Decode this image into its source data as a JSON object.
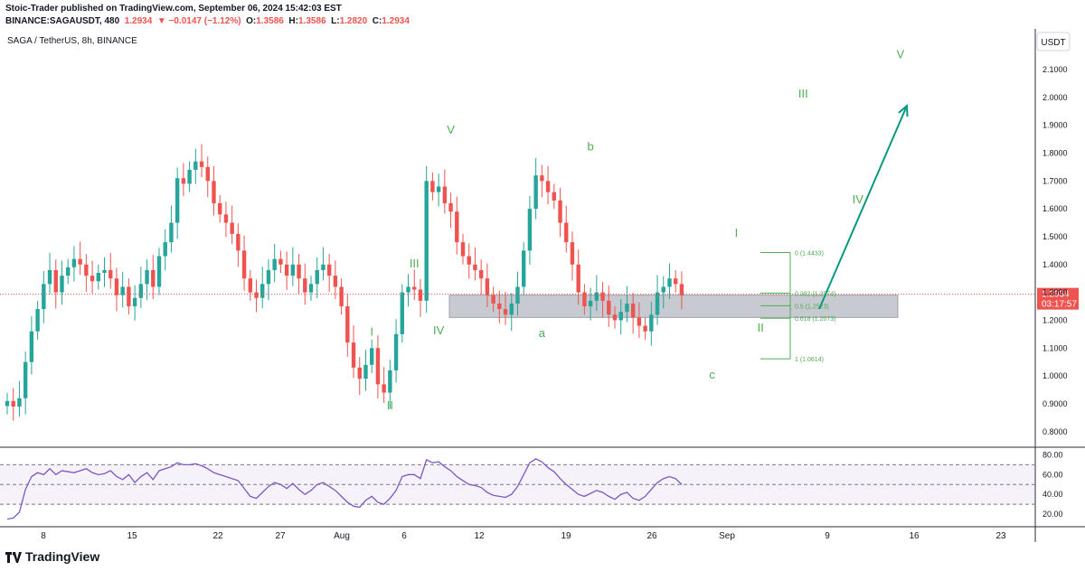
{
  "header": {
    "line1": "Stoic-Trader published on TradingView.com, September 06, 2024 15:42:03 EST",
    "symbol": "BINANCE:SAGAUSDT, 480",
    "last": "1.2934",
    "change": "▼ −0.0147 (−1.12%)",
    "o_label": "O:",
    "o": "1.3586",
    "h_label": "H:",
    "h": "1.3586",
    "l_label": "L:",
    "l": "1.2820",
    "c_label": "C:",
    "c": "1.2934"
  },
  "legend": "SAGA / TetherUS, 8h, BINANCE",
  "currency": "USDT",
  "price_tag": {
    "value": "1.2934",
    "countdown": "03:17:57"
  },
  "footer": {
    "brand": "TradingView"
  },
  "colors": {
    "up": "#26a69a",
    "down": "#ef5350",
    "wave": "#4caf50",
    "arrow": "#089981",
    "rsi": "#7e57c2"
  },
  "chart_data": {
    "type": "candlestick",
    "y_axis_ticks": [
      "2.1000",
      "2.0000",
      "1.9000",
      "1.8000",
      "1.7000",
      "1.6000",
      "1.5000",
      "1.4000",
      "1.3000",
      "1.2000",
      "1.1000",
      "1.0000",
      "0.9000",
      "0.8000"
    ],
    "ylim": [
      0.77,
      2.22
    ],
    "x_ticks": [
      "8",
      "15",
      "22",
      "27",
      "Aug",
      "6",
      "12",
      "19",
      "26",
      "Sep",
      "9",
      "16",
      "23"
    ],
    "series_close": [
      0.91,
      0.89,
      0.92,
      1.05,
      1.16,
      1.24,
      1.33,
      1.38,
      1.3,
      1.36,
      1.39,
      1.42,
      1.4,
      1.36,
      1.34,
      1.37,
      1.38,
      1.35,
      1.29,
      1.32,
      1.25,
      1.28,
      1.33,
      1.38,
      1.32,
      1.43,
      1.48,
      1.55,
      1.71,
      1.69,
      1.74,
      1.77,
      1.75,
      1.7,
      1.62,
      1.58,
      1.55,
      1.51,
      1.45,
      1.35,
      1.3,
      1.28,
      1.33,
      1.38,
      1.42,
      1.4,
      1.36,
      1.4,
      1.35,
      1.3,
      1.33,
      1.38,
      1.4,
      1.36,
      1.32,
      1.25,
      1.12,
      1.03,
      0.99,
      1.04,
      1.1,
      0.97,
      0.94,
      1.02,
      1.15,
      1.3,
      1.32,
      1.31,
      1.27,
      1.7,
      1.66,
      1.68,
      1.62,
      1.59,
      1.48,
      1.43,
      1.4,
      1.38,
      1.35,
      1.29,
      1.26,
      1.24,
      1.22,
      1.26,
      1.32,
      1.45,
      1.6,
      1.72,
      1.7,
      1.66,
      1.63,
      1.55,
      1.48,
      1.4,
      1.3,
      1.25,
      1.27,
      1.3,
      1.27,
      1.22,
      1.2,
      1.23,
      1.26,
      1.21,
      1.18,
      1.16,
      1.22,
      1.3,
      1.32,
      1.35,
      1.33,
      1.29
    ],
    "wave_labels": [
      {
        "text": "I",
        "date_index": 60,
        "price": 1.145
      },
      {
        "text": "II",
        "date_index": 63,
        "price": 0.88
      },
      {
        "text": "III",
        "date_index": 67,
        "price": 1.39
      },
      {
        "text": "IV",
        "date_index": 71,
        "price": 1.15
      },
      {
        "text": "V",
        "date_index": 73,
        "price": 1.87
      },
      {
        "text": "a",
        "date_index": 88,
        "price": 1.14
      },
      {
        "text": "b",
        "date_index": 96,
        "price": 1.81
      },
      {
        "text": "c",
        "date_index": 116,
        "price": 0.99
      },
      {
        "text": "I",
        "date_index": 120,
        "price": 1.5
      },
      {
        "text": "II",
        "date_index": 124,
        "price": 1.16
      },
      {
        "text": "III",
        "date_index": 131,
        "price": 2.0
      },
      {
        "text": "IV",
        "date_index": 140,
        "price": 1.62
      },
      {
        "text": "V",
        "date_index": 147,
        "price": 2.14
      }
    ],
    "fib": [
      {
        "label": "0 (1.4433)",
        "price": 1.4433
      },
      {
        "label": "0.382 (1.2974)",
        "price": 1.2974
      },
      {
        "label": "0.5 (1.2523)",
        "price": 1.2523
      },
      {
        "label": "0.618 (1.2073)",
        "price": 1.2073
      },
      {
        "label": "1 (1.0614)",
        "price": 1.0614
      }
    ],
    "zone": {
      "top": 1.29,
      "bottom": 1.21
    },
    "arrow": {
      "from": 1.24,
      "to": 1.97
    },
    "rsi": {
      "ticks": [
        "80.00",
        "60.00",
        "40.00",
        "20.00"
      ],
      "ylim": [
        10,
        85
      ],
      "upper": 70,
      "middle": 50,
      "lower": 30,
      "values": [
        15,
        16,
        22,
        45,
        58,
        62,
        60,
        66,
        60,
        64,
        63,
        62,
        64,
        66,
        62,
        60,
        61,
        64,
        58,
        55,
        60,
        52,
        58,
        62,
        55,
        64,
        66,
        68,
        72,
        70,
        70,
        71,
        69,
        66,
        62,
        60,
        58,
        56,
        54,
        46,
        38,
        36,
        42,
        48,
        52,
        50,
        46,
        51,
        45,
        40,
        44,
        50,
        52,
        48,
        44,
        38,
        32,
        28,
        27,
        34,
        38,
        32,
        30,
        36,
        44,
        58,
        60,
        60,
        56,
        75,
        72,
        73,
        68,
        64,
        58,
        54,
        50,
        49,
        47,
        42,
        39,
        38,
        37,
        40,
        48,
        60,
        72,
        76,
        73,
        67,
        63,
        56,
        50,
        45,
        40,
        38,
        41,
        44,
        42,
        38,
        35,
        40,
        42,
        36,
        34,
        38,
        45,
        52,
        56,
        58,
        56,
        50
      ]
    }
  }
}
